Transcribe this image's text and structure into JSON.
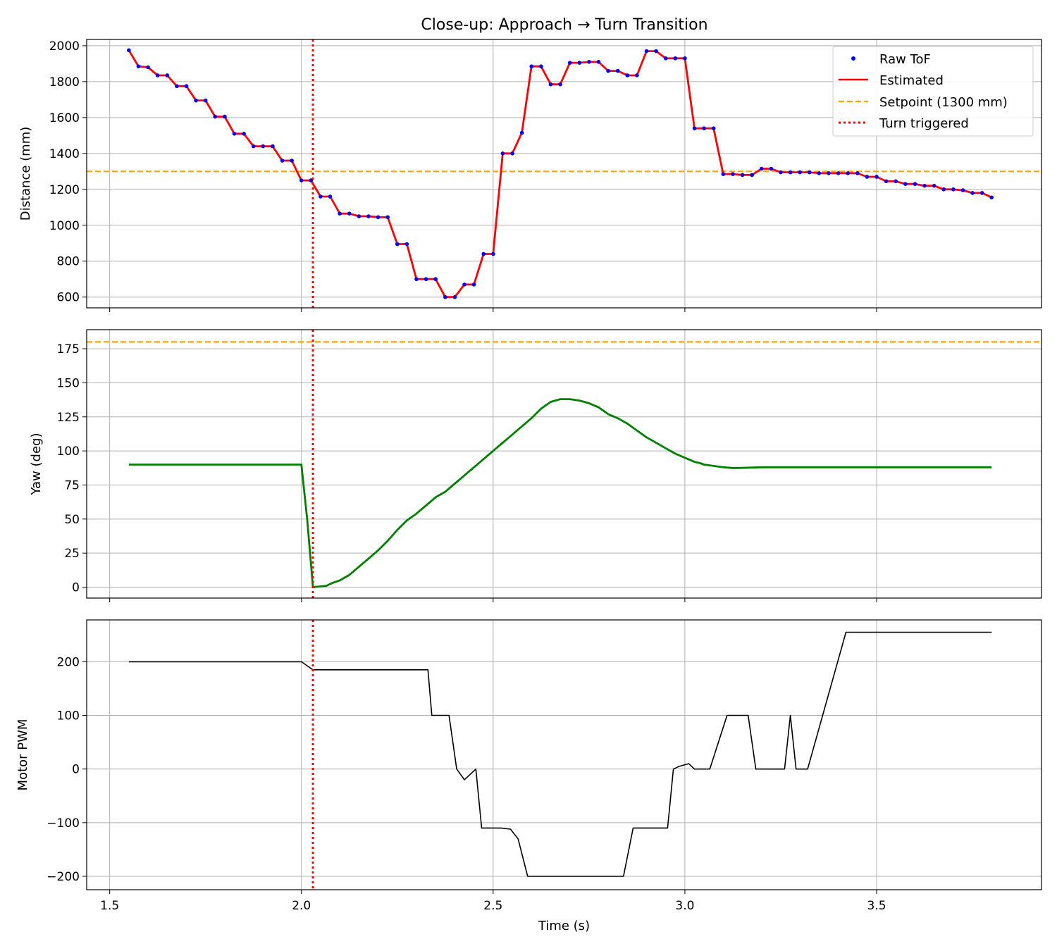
{
  "title": "Close-up: Approach → Turn Transition",
  "chart_data": [
    {
      "type": "line",
      "ylabel": "Distance (mm)",
      "xlabel": "",
      "xlim": [
        1.44,
        3.93
      ],
      "ylim": [
        540,
        2035
      ],
      "x_ticks": [
        1.5,
        2.0,
        2.5,
        3.0,
        3.5
      ],
      "y_ticks": [
        600,
        800,
        1000,
        1200,
        1400,
        1600,
        1800,
        2000
      ],
      "grid": true,
      "legend": {
        "placement": "top-right"
      },
      "hlines": [
        {
          "name": "Setpoint (1300 mm)",
          "y": 1300,
          "color": "#ffa500",
          "style": "dashed"
        }
      ],
      "vlines": [
        {
          "name": "Turn triggered",
          "x": 2.03,
          "color": "#ff0000",
          "style": "dotted"
        }
      ],
      "series": [
        {
          "name": "Raw ToF",
          "style": "markers",
          "color": "#0000ff",
          "x": [
            1.55,
            1.575,
            1.6,
            1.625,
            1.65,
            1.675,
            1.7,
            1.725,
            1.75,
            1.775,
            1.8,
            1.825,
            1.85,
            1.875,
            1.9,
            1.925,
            1.95,
            1.975,
            2.0,
            2.025,
            2.05,
            2.075,
            2.1,
            2.125,
            2.15,
            2.175,
            2.2,
            2.225,
            2.25,
            2.275,
            2.3,
            2.325,
            2.35,
            2.375,
            2.4,
            2.425,
            2.45,
            2.475,
            2.5,
            2.525,
            2.55,
            2.575,
            2.6,
            2.625,
            2.65,
            2.675,
            2.7,
            2.725,
            2.75,
            2.775,
            2.8,
            2.825,
            2.85,
            2.875,
            2.9,
            2.925,
            2.95,
            2.975,
            3.0,
            3.025,
            3.05,
            3.075,
            3.1,
            3.125,
            3.15,
            3.175,
            3.2,
            3.225,
            3.25,
            3.275,
            3.3,
            3.325,
            3.35,
            3.375,
            3.4,
            3.425,
            3.45,
            3.475,
            3.5,
            3.525,
            3.55,
            3.575,
            3.6,
            3.625,
            3.65,
            3.675,
            3.7,
            3.725,
            3.75,
            3.775,
            3.8
          ],
          "y": [
            1975,
            1885,
            1880,
            1835,
            1835,
            1775,
            1775,
            1695,
            1695,
            1605,
            1605,
            1510,
            1510,
            1440,
            1440,
            1440,
            1360,
            1360,
            1250,
            1250,
            1160,
            1160,
            1065,
            1065,
            1050,
            1050,
            1045,
            1045,
            895,
            895,
            700,
            700,
            700,
            600,
            600,
            670,
            670,
            840,
            840,
            1400,
            1400,
            1515,
            1885,
            1885,
            1785,
            1785,
            1905,
            1905,
            1910,
            1910,
            1860,
            1860,
            1835,
            1835,
            1970,
            1970,
            1930,
            1930,
            1930,
            1540,
            1540,
            1540,
            1285,
            1285,
            1280,
            1280,
            1315,
            1315,
            1295,
            1295,
            1295,
            1295,
            1290,
            1290,
            1290,
            1290,
            1290,
            1270,
            1270,
            1245,
            1245,
            1230,
            1230,
            1220,
            1220,
            1200,
            1200,
            1195,
            1180,
            1180,
            1155
          ]
        },
        {
          "name": "Estimated",
          "style": "line",
          "color": "#ff0000",
          "x": [
            1.55,
            1.575,
            1.6,
            1.625,
            1.65,
            1.675,
            1.7,
            1.725,
            1.75,
            1.775,
            1.8,
            1.825,
            1.85,
            1.875,
            1.9,
            1.925,
            1.95,
            1.975,
            2.0,
            2.025,
            2.05,
            2.075,
            2.1,
            2.125,
            2.15,
            2.175,
            2.2,
            2.225,
            2.25,
            2.275,
            2.3,
            2.325,
            2.35,
            2.375,
            2.4,
            2.425,
            2.45,
            2.475,
            2.5,
            2.525,
            2.55,
            2.575,
            2.6,
            2.625,
            2.65,
            2.675,
            2.7,
            2.725,
            2.75,
            2.775,
            2.8,
            2.825,
            2.85,
            2.875,
            2.9,
            2.925,
            2.95,
            2.975,
            3.0,
            3.025,
            3.05,
            3.075,
            3.1,
            3.125,
            3.15,
            3.175,
            3.2,
            3.225,
            3.25,
            3.275,
            3.3,
            3.325,
            3.35,
            3.375,
            3.4,
            3.425,
            3.45,
            3.475,
            3.5,
            3.525,
            3.55,
            3.575,
            3.6,
            3.625,
            3.65,
            3.675,
            3.7,
            3.725,
            3.75,
            3.775,
            3.8
          ],
          "y": [
            1975,
            1885,
            1880,
            1835,
            1835,
            1775,
            1775,
            1695,
            1695,
            1605,
            1605,
            1510,
            1510,
            1440,
            1440,
            1440,
            1360,
            1360,
            1250,
            1250,
            1160,
            1160,
            1065,
            1065,
            1050,
            1050,
            1045,
            1045,
            895,
            895,
            700,
            700,
            700,
            600,
            600,
            670,
            670,
            840,
            840,
            1400,
            1400,
            1515,
            1885,
            1885,
            1785,
            1785,
            1905,
            1905,
            1910,
            1910,
            1860,
            1860,
            1835,
            1835,
            1970,
            1970,
            1930,
            1930,
            1930,
            1540,
            1540,
            1540,
            1285,
            1285,
            1280,
            1280,
            1315,
            1315,
            1295,
            1295,
            1295,
            1295,
            1290,
            1290,
            1290,
            1290,
            1290,
            1270,
            1270,
            1245,
            1245,
            1230,
            1230,
            1220,
            1220,
            1200,
            1200,
            1195,
            1180,
            1180,
            1155
          ]
        }
      ]
    },
    {
      "type": "line",
      "ylabel": "Yaw (deg)",
      "xlabel": "",
      "xlim": [
        1.44,
        3.93
      ],
      "ylim": [
        -8,
        189
      ],
      "x_ticks": [
        1.5,
        2.0,
        2.5,
        3.0,
        3.5
      ],
      "y_ticks": [
        0,
        25,
        50,
        75,
        100,
        125,
        150,
        175
      ],
      "grid": true,
      "hlines": [
        {
          "y": 180,
          "color": "#ffa500",
          "style": "dashed"
        }
      ],
      "vlines": [
        {
          "x": 2.03,
          "color": "#ff0000",
          "style": "dotted"
        }
      ],
      "series": [
        {
          "color": "#008000",
          "x": [
            1.55,
            2.0,
            2.015,
            2.03,
            2.065,
            2.08,
            2.1,
            2.125,
            2.15,
            2.175,
            2.2,
            2.225,
            2.25,
            2.275,
            2.3,
            2.325,
            2.35,
            2.375,
            2.4,
            2.425,
            2.45,
            2.475,
            2.5,
            2.525,
            2.55,
            2.575,
            2.6,
            2.625,
            2.65,
            2.675,
            2.7,
            2.725,
            2.75,
            2.775,
            2.8,
            2.825,
            2.85,
            2.875,
            2.9,
            2.925,
            2.95,
            2.975,
            3.0,
            3.025,
            3.04,
            3.05,
            3.075,
            3.1,
            3.125,
            3.14,
            3.2,
            3.3,
            3.5,
            3.8
          ],
          "y": [
            90,
            90,
            50,
            0,
            1,
            3,
            5,
            9,
            15,
            21,
            27,
            34,
            42,
            49,
            54,
            60,
            66,
            70,
            76,
            82,
            88,
            94,
            100,
            106,
            112,
            118,
            124,
            131,
            136,
            138,
            138,
            137,
            135,
            132,
            127,
            124,
            120,
            115,
            110,
            106,
            102,
            98,
            95,
            92,
            91,
            90,
            89,
            88,
            87.5,
            87.5,
            88,
            88,
            88,
            88
          ]
        }
      ]
    },
    {
      "type": "line",
      "ylabel": "Motor PWM",
      "xlabel": "Time (s)",
      "xlim": [
        1.44,
        3.93
      ],
      "ylim": [
        -225,
        278
      ],
      "x_ticks": [
        1.5,
        2.0,
        2.5,
        3.0,
        3.5
      ],
      "x_tick_labels": [
        "1.5",
        "2.0",
        "2.5",
        "3.0",
        "3.5"
      ],
      "y_ticks": [
        -200,
        -100,
        0,
        100,
        200
      ],
      "y_tick_labels": [
        "−200",
        "−100",
        "0",
        "100",
        "200"
      ],
      "grid": true,
      "vlines": [
        {
          "x": 2.03,
          "color": "#ff0000",
          "style": "dotted"
        }
      ],
      "series": [
        {
          "color": "#000000",
          "x": [
            1.55,
            2.0,
            2.03,
            2.33,
            2.34,
            2.385,
            2.405,
            2.425,
            2.455,
            2.47,
            2.5,
            2.52,
            2.545,
            2.565,
            2.59,
            2.84,
            2.865,
            2.955,
            2.97,
            2.985,
            3.01,
            3.025,
            3.065,
            3.11,
            3.115,
            3.165,
            3.185,
            3.26,
            3.275,
            3.29,
            3.31,
            3.32,
            3.42,
            3.8
          ],
          "y": [
            200,
            200,
            185,
            185,
            100,
            100,
            0,
            -20,
            0,
            -110,
            -110,
            -110,
            -112,
            -130,
            -200,
            -200,
            -110,
            -110,
            0,
            5,
            10,
            0,
            0,
            100,
            100,
            100,
            0,
            0,
            100,
            0,
            0,
            0,
            255,
            255
          ]
        }
      ]
    }
  ]
}
